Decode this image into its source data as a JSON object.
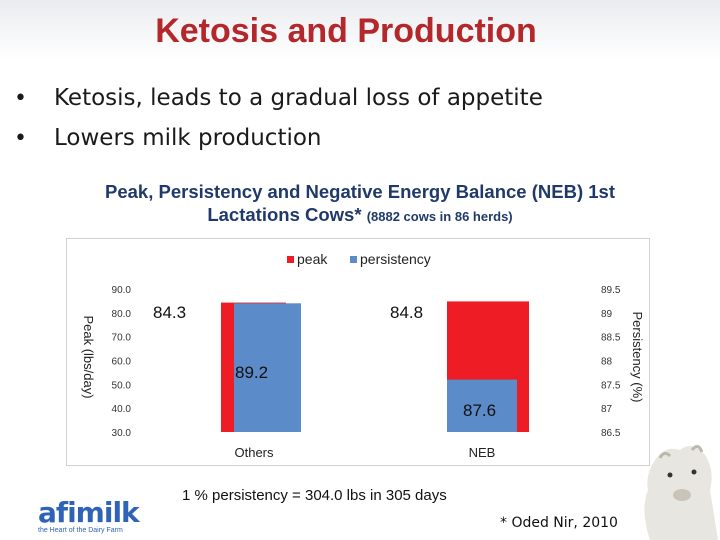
{
  "slide": {
    "title": "Ketosis and Production",
    "bullets": [
      "Ketosis, leads to a gradual loss of appetite",
      "Lowers milk production"
    ],
    "chart_title_main": "Peak, Persistency and Negative Energy Balance (NEB) 1st Lactations Cows*",
    "chart_title_small": "(8882 cows in 86 herds)",
    "footnote": "1 % persistency = 304.0 lbs in 305 days",
    "citation": "* Oded Nir, 2010",
    "logo_text": "afimilk",
    "logo_tagline": "the Heart of the Dairy Farm"
  },
  "colors": {
    "title": "#b4272a",
    "peak": "#ee1c24",
    "persistency": "#5b8bc9"
  },
  "chart_data": {
    "type": "bar",
    "categories": [
      "Others",
      "NEB"
    ],
    "series": [
      {
        "name": "peak",
        "axis": "left",
        "values": [
          84.3,
          84.8
        ],
        "labels": [
          "84.3",
          "84.8"
        ],
        "color": "#ee1c24"
      },
      {
        "name": "persistency",
        "axis": "right",
        "values": [
          89.2,
          87.6
        ],
        "labels": [
          "89.2",
          "87.6"
        ],
        "color": "#5b8bc9"
      }
    ],
    "ylabel_left": "Peak (lbs/day)",
    "ylabel_right": "Persistency (%)",
    "ylim_left": [
      30,
      90
    ],
    "yticks_left": [
      "30.0",
      "40.0",
      "50.0",
      "60.0",
      "70.0",
      "80.0",
      "90.0"
    ],
    "ylim_right": [
      86.5,
      89.5
    ],
    "yticks_right": [
      "86.5",
      "87",
      "87.5",
      "88",
      "88.5",
      "89",
      "89.5"
    ],
    "legend_position": "top-center",
    "grid": false
  }
}
